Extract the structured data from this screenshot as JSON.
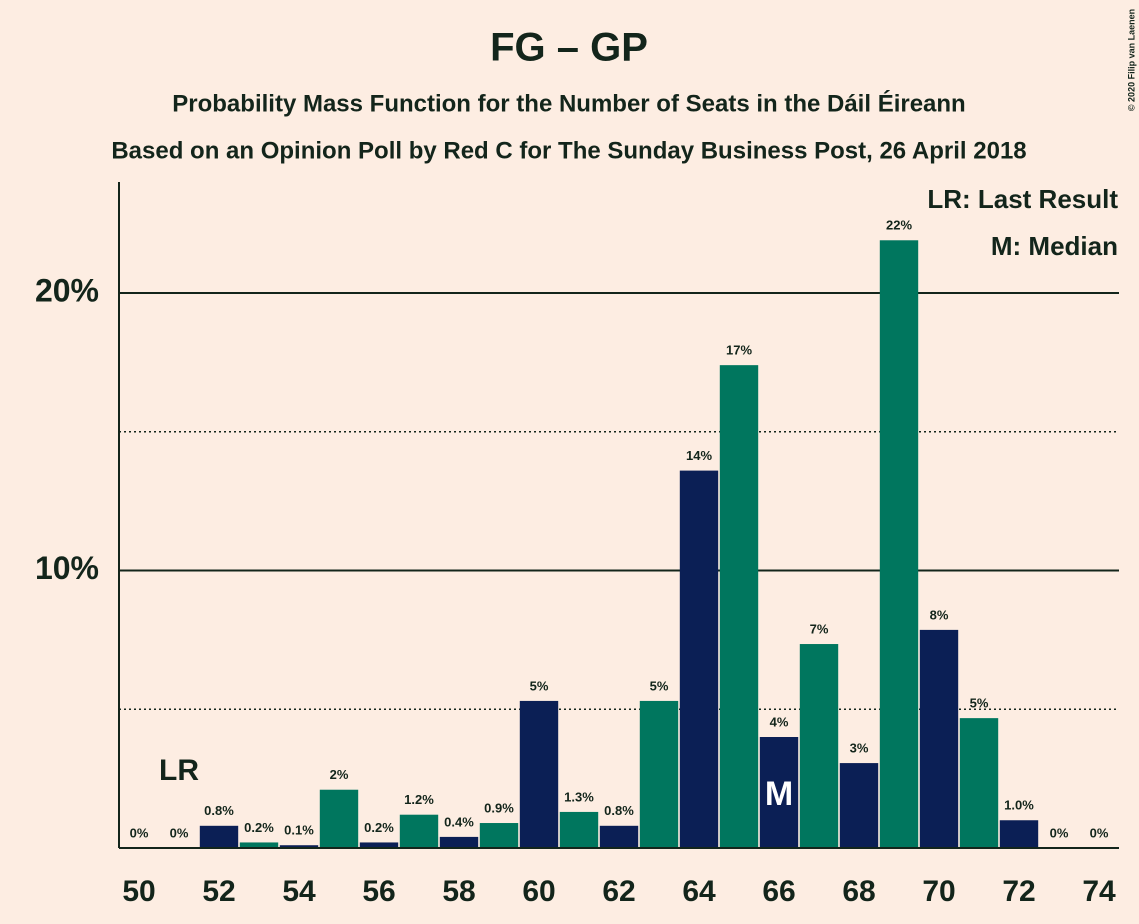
{
  "chart_data": {
    "type": "bar",
    "title": "FG – GP",
    "subtitle": "Probability Mass Function for the Number of Seats in the Dáil Éireann",
    "subtitle2": "Based on an Opinion Poll by Red C for The Sunday Business Post, 26 April 2018",
    "copyright": "© 2020 Filip van Laenen",
    "x": [
      50,
      51,
      52,
      53,
      54,
      55,
      56,
      57,
      58,
      59,
      60,
      61,
      62,
      63,
      64,
      65,
      66,
      67,
      68,
      69,
      70,
      71,
      72,
      73,
      74
    ],
    "values": [
      0,
      0,
      0.8,
      0.2,
      0.1,
      2.1,
      0.2,
      1.2,
      0.4,
      0.9,
      5.3,
      1.3,
      0.8,
      5.3,
      13.6,
      17.4,
      4.0,
      7.35,
      3.06,
      21.9,
      7.86,
      4.68,
      1.0,
      0,
      0
    ],
    "value_labels": [
      "0%",
      "0%",
      "0.8%",
      "0.2%",
      "0.1%",
      "2%",
      "0.2%",
      "1.2%",
      "0.4%",
      "0.9%",
      "5%",
      "1.3%",
      "0.8%",
      "5%",
      "14%",
      "17%",
      "4%",
      "7%",
      "3%",
      "22%",
      "8%",
      "5%",
      "1.0%",
      "0%",
      "0%"
    ],
    "colors": [
      "#0b1f55",
      "#00765e"
    ],
    "xlim": [
      49.5,
      74.5
    ],
    "xticks": [
      50,
      52,
      54,
      56,
      58,
      60,
      62,
      64,
      66,
      68,
      70,
      72,
      74
    ],
    "ylim": [
      0,
      24
    ],
    "yticks": [
      {
        "value": 10,
        "label": "10%"
      },
      {
        "value": 20,
        "label": "20%"
      }
    ],
    "minor_yticks": [
      5,
      15
    ],
    "grid": true,
    "annotations": [
      {
        "text": "LR",
        "x": 51
      },
      {
        "text": "M",
        "x": 66
      }
    ],
    "legend": [
      "LR: Last Result",
      "M: Median"
    ],
    "legend_position": "upper right"
  }
}
